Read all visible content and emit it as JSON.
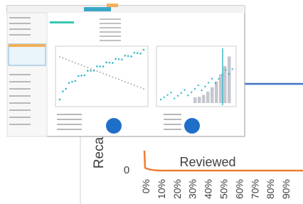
{
  "background_chart": {
    "y_axis_label": "Reca",
    "y_tick": "0",
    "series_label": "Reviewed",
    "x_ticks": [
      "0%",
      "10%",
      "20%",
      "30%",
      "40%",
      "50%",
      "60%",
      "70%",
      "80%",
      "90%"
    ]
  }
}
